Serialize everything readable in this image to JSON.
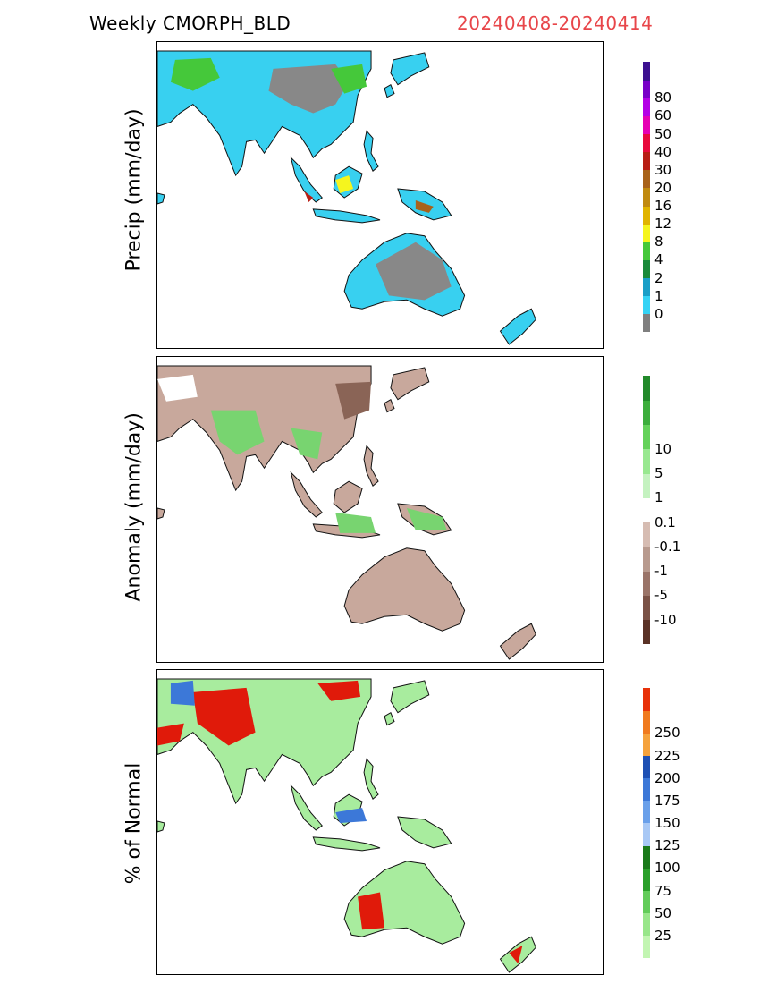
{
  "header": {
    "product_title": "Weekly CMORPH_BLD",
    "date_range": "20240408-20240414",
    "date_color": "#e8464a"
  },
  "panels": [
    {
      "key": "precip",
      "ylabel": "Precip (mm/day)",
      "colorbar": {
        "colors": [
          "#7f7f7f",
          "#35d3f5",
          "#1a9fc7",
          "#1a8a3a",
          "#45c83a",
          "#f5f51e",
          "#e0b400",
          "#c08a10",
          "#a8621a",
          "#b81e14",
          "#e80a3c",
          "#e600b4",
          "#b400e6",
          "#7800c8",
          "#3c1090"
        ],
        "labels": [
          "0",
          "1",
          "2",
          "4",
          "8",
          "12",
          "16",
          "20",
          "30",
          "40",
          "50",
          "60",
          "80"
        ]
      }
    },
    {
      "key": "anomaly",
      "ylabel": "Anomaly (mm/day)",
      "colorbar": {
        "colors": [
          "#5a3226",
          "#7a5246",
          "#9a7468",
          "#b89a8e",
          "#d6bcb2",
          "#ffffff",
          "#c4f2c0",
          "#98e890",
          "#64d25a",
          "#3cae3c",
          "#228a2a"
        ],
        "labels": [
          "-10",
          "-5",
          "-1",
          "-0.1",
          "0.1",
          "1",
          "5",
          "10"
        ]
      }
    },
    {
      "key": "percent",
      "ylabel": "% of Normal",
      "colorbar": {
        "colors": [
          "#c2f5b2",
          "#98e68a",
          "#62cc5a",
          "#2aa02a",
          "#1a7a1a",
          "#a8c8f5",
          "#6aa0ea",
          "#3c78d8",
          "#1e50b4",
          "#f5a23c",
          "#f07a1e",
          "#e8320a"
        ],
        "labels": [
          "25",
          "50",
          "75",
          "100",
          "125",
          "150",
          "175",
          "200",
          "225",
          "250"
        ]
      }
    }
  ],
  "map_colors": {
    "land_precip": "#38d0f0",
    "land_dry": "#888888",
    "land_anom": "#c8a89c",
    "land_anom_wet": "#78d470",
    "land_pct": "#a8ec9e",
    "pct_high": "#e01a0a",
    "pct_mid": "#3c78d8"
  }
}
